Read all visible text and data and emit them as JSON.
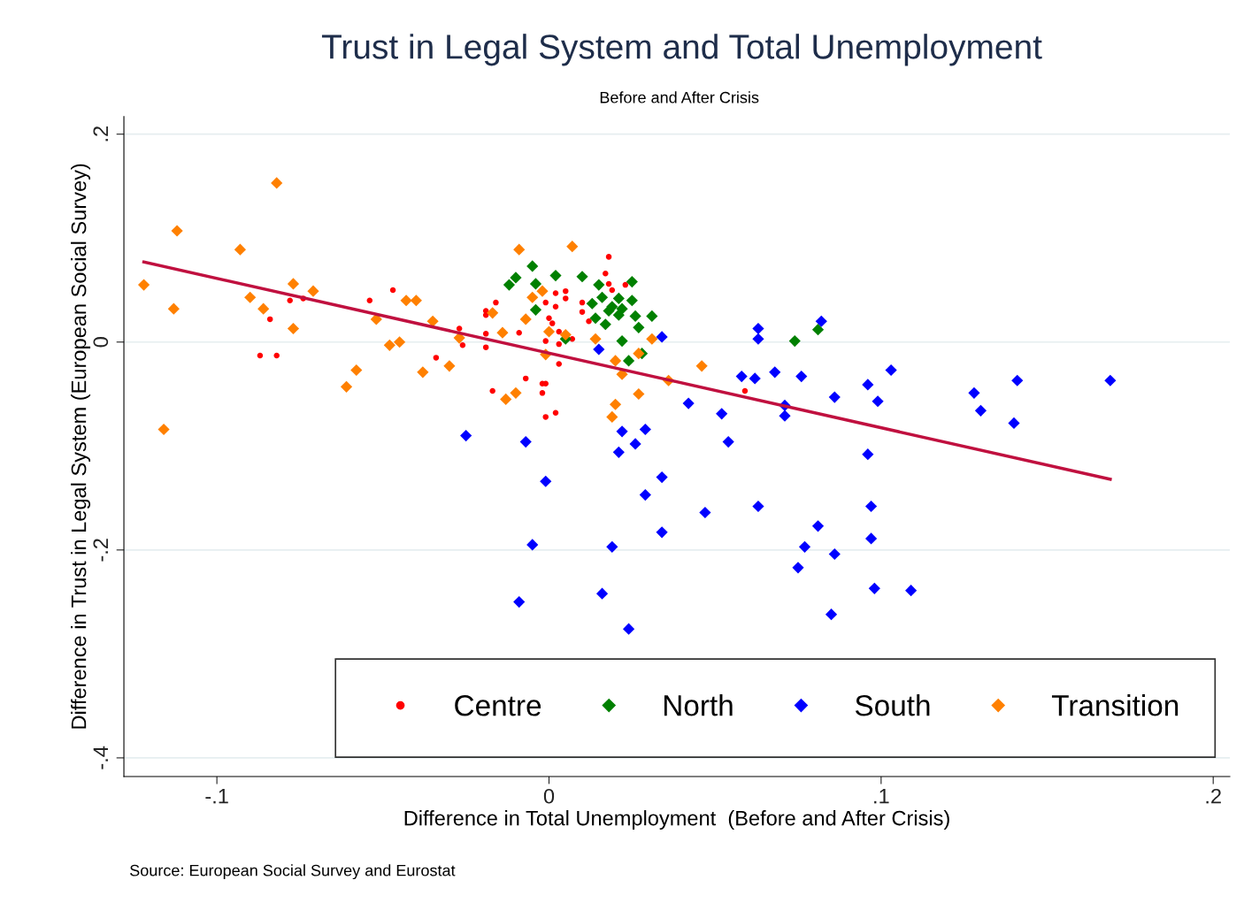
{
  "chart_data": {
    "type": "scatter",
    "title": "Trust in Legal System and Total Unemployment",
    "subtitle": "Before and After Crisis",
    "xlabel": "Difference in Total Unemployment  (Before and After Crisis)",
    "ylabel": "Difference in Trust in Legal System (European Social Survey)",
    "annotations": [
      "Source: European Social Survey and Eurostat"
    ],
    "xlim": [
      -0.128,
      0.205
    ],
    "ylim": [
      -0.418,
      0.217
    ],
    "xticks": [
      {
        "value": -0.1,
        "label": "-.1"
      },
      0,
      {
        "value": 0.1,
        "label": ".1"
      },
      {
        "value": 0.2,
        "label": ".2"
      }
    ],
    "yticks": [
      {
        "value": -0.4,
        "label": "-.4"
      },
      {
        "value": -0.2,
        "label": "-.2"
      },
      0,
      {
        "value": 0.2,
        "label": ".2"
      }
    ],
    "grid": "y",
    "legend": "bottom right",
    "series": [
      {
        "name": "Centre",
        "color": "#ff0000",
        "marker": "circle",
        "x": [
          -0.087,
          -0.082,
          -0.084,
          -0.078,
          -0.074,
          -0.054,
          -0.047,
          0.018,
          0.017,
          0.018,
          0.019,
          0.023,
          0.002,
          0.005,
          0.005,
          -0.001,
          0.002,
          -0.016,
          -0.019,
          -0.019,
          0.01,
          0.01,
          0.012,
          0.0,
          0.001,
          -0.009,
          -0.019,
          -0.027,
          -0.026,
          -0.019,
          -0.001,
          0.003,
          0.007,
          0.003,
          -0.034,
          -0.007,
          -0.002,
          -0.001,
          -0.002,
          -0.017,
          -0.001,
          0.002,
          0.003,
          0.059
        ],
        "values": [
          -0.013,
          -0.013,
          0.022,
          0.04,
          0.042,
          0.04,
          0.05,
          0.082,
          0.066,
          0.056,
          0.05,
          0.055,
          0.047,
          0.049,
          0.042,
          0.038,
          0.034,
          0.038,
          0.03,
          0.026,
          0.038,
          0.029,
          0.02,
          0.023,
          0.018,
          0.009,
          0.008,
          0.013,
          -0.003,
          -0.005,
          0.001,
          -0.002,
          0.003,
          -0.021,
          -0.015,
          -0.035,
          -0.04,
          -0.04,
          -0.049,
          -0.047,
          -0.072,
          -0.068,
          0.01,
          -0.047
        ]
      },
      {
        "name": "North",
        "color": "#008000",
        "marker": "diamond",
        "x": [
          -0.005,
          -0.01,
          -0.012,
          -0.004,
          0.002,
          -0.004,
          0.01,
          0.015,
          0.025,
          0.013,
          0.016,
          0.021,
          0.025,
          0.018,
          0.021,
          0.017,
          0.014,
          0.026,
          0.031,
          0.027,
          0.022,
          0.024,
          0.028,
          0.005,
          0.019,
          0.022,
          0.074,
          0.081
        ],
        "values": [
          0.073,
          0.062,
          0.055,
          0.056,
          0.064,
          0.031,
          0.063,
          0.055,
          0.058,
          0.037,
          0.043,
          0.042,
          0.04,
          0.03,
          0.026,
          0.017,
          0.023,
          0.025,
          0.025,
          0.014,
          0.001,
          -0.018,
          -0.011,
          0.003,
          0.034,
          0.032,
          0.001,
          0.012
        ]
      },
      {
        "name": "South",
        "color": "#0000ff",
        "marker": "diamond",
        "x": [
          0.015,
          0.034,
          -0.025,
          -0.007,
          -0.001,
          -0.005,
          -0.009,
          0.019,
          0.016,
          0.024,
          0.022,
          0.029,
          0.026,
          0.021,
          0.034,
          0.029,
          0.034,
          0.063,
          0.063,
          0.082,
          0.042,
          0.052,
          0.054,
          0.058,
          0.062,
          0.068,
          0.076,
          0.071,
          0.071,
          0.086,
          0.096,
          0.099,
          0.103,
          0.096,
          0.047,
          0.063,
          0.097,
          0.081,
          0.077,
          0.086,
          0.097,
          0.075,
          0.098,
          0.109,
          0.085,
          0.128,
          0.13,
          0.141,
          0.14,
          0.169
        ],
        "values": [
          -0.007,
          0.005,
          -0.09,
          -0.096,
          -0.134,
          -0.195,
          -0.25,
          -0.197,
          -0.242,
          -0.276,
          -0.086,
          -0.084,
          -0.098,
          -0.106,
          -0.13,
          -0.147,
          -0.183,
          0.013,
          0.003,
          0.02,
          -0.059,
          -0.069,
          -0.096,
          -0.033,
          -0.035,
          -0.029,
          -0.033,
          -0.071,
          -0.061,
          -0.053,
          -0.041,
          -0.057,
          -0.027,
          -0.108,
          -0.164,
          -0.158,
          -0.158,
          -0.177,
          -0.197,
          -0.204,
          -0.189,
          -0.217,
          -0.237,
          -0.239,
          -0.262,
          -0.049,
          -0.066,
          -0.037,
          -0.078,
          -0.037
        ]
      },
      {
        "name": "Transition",
        "color": "#ff8000",
        "marker": "diamond",
        "x": [
          -0.122,
          -0.112,
          -0.082,
          -0.093,
          -0.113,
          -0.116,
          -0.09,
          -0.086,
          -0.077,
          -0.077,
          -0.071,
          -0.052,
          -0.048,
          -0.045,
          -0.043,
          -0.04,
          -0.058,
          -0.061,
          -0.038,
          -0.035,
          -0.03,
          -0.027,
          -0.009,
          0.007,
          -0.002,
          -0.005,
          -0.017,
          -0.007,
          -0.014,
          0.0,
          0.005,
          0.014,
          0.031,
          0.027,
          0.02,
          0.022,
          -0.001,
          0.036,
          -0.013,
          -0.01,
          0.027,
          0.02,
          0.019,
          0.046
        ],
        "values": [
          0.055,
          0.107,
          0.153,
          0.089,
          0.032,
          -0.084,
          0.043,
          0.032,
          0.056,
          0.013,
          0.049,
          0.022,
          -0.003,
          0.0,
          0.04,
          0.04,
          -0.027,
          -0.043,
          -0.029,
          0.02,
          -0.023,
          0.004,
          0.089,
          0.092,
          0.049,
          0.043,
          0.028,
          0.022,
          0.009,
          0.01,
          0.007,
          0.003,
          0.003,
          -0.011,
          -0.018,
          -0.031,
          -0.012,
          -0.037,
          -0.055,
          -0.049,
          -0.05,
          -0.06,
          -0.072,
          -0.023
        ]
      },
      {
        "type": "line",
        "color": "#c0103f",
        "marker": "none",
        "line_style": "solid",
        "x": [
          -0.122,
          0.169
        ],
        "values": [
          0.077,
          -0.132
        ]
      }
    ]
  }
}
